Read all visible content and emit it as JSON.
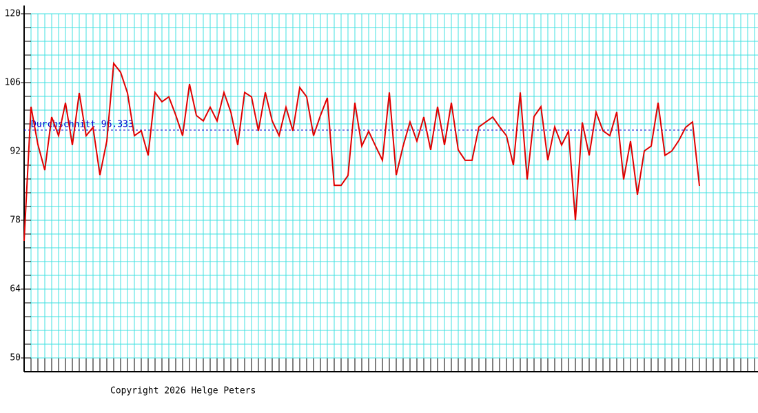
{
  "chart_data": {
    "type": "line",
    "color": "#e00000",
    "grid_color": "#40e0e0",
    "ylim": [
      50,
      120
    ],
    "yticks": [
      50,
      64,
      78,
      92,
      106,
      120
    ],
    "grid": true,
    "average": {
      "value": 96.333,
      "label": "Durchschnitt 96.333",
      "color": "#0000d0"
    },
    "values": [
      73.8,
      101.1,
      93.4,
      88.2,
      99,
      95.2,
      101.9,
      93.3,
      103.9,
      95.2,
      96.9,
      87.2,
      94.1,
      109.9,
      108.1,
      103.9,
      95.2,
      96.2,
      91.2,
      104,
      102.1,
      103.1,
      99.4,
      95.2,
      105.7,
      99.3,
      98.2,
      101,
      98.2,
      104,
      100,
      93.3,
      104,
      103.1,
      96.2,
      104,
      98.2,
      95.2,
      101,
      96.2,
      105,
      103.1,
      95.2,
      99.3,
      102.9,
      85.1,
      85.1,
      87.1,
      101.9,
      93.1,
      96.1,
      93.1,
      90.2,
      104,
      87.2,
      93.1,
      98,
      94.1,
      99,
      92.3,
      101.1,
      93.3,
      101.9,
      92.3,
      90.2,
      90.2,
      97,
      98,
      99,
      97,
      95.2,
      89.2,
      104,
      86.3,
      99.1,
      101.1,
      90.2,
      97,
      93.3,
      96.1,
      78,
      97.9,
      91.2,
      100,
      96.2,
      95.2,
      100,
      86.3,
      94.1,
      83.2,
      92.1,
      93.1,
      101.9,
      91.2,
      92.1,
      94.2,
      96.9,
      98,
      85
    ]
  },
  "footer": "Copyright 2026 Helge Peters"
}
